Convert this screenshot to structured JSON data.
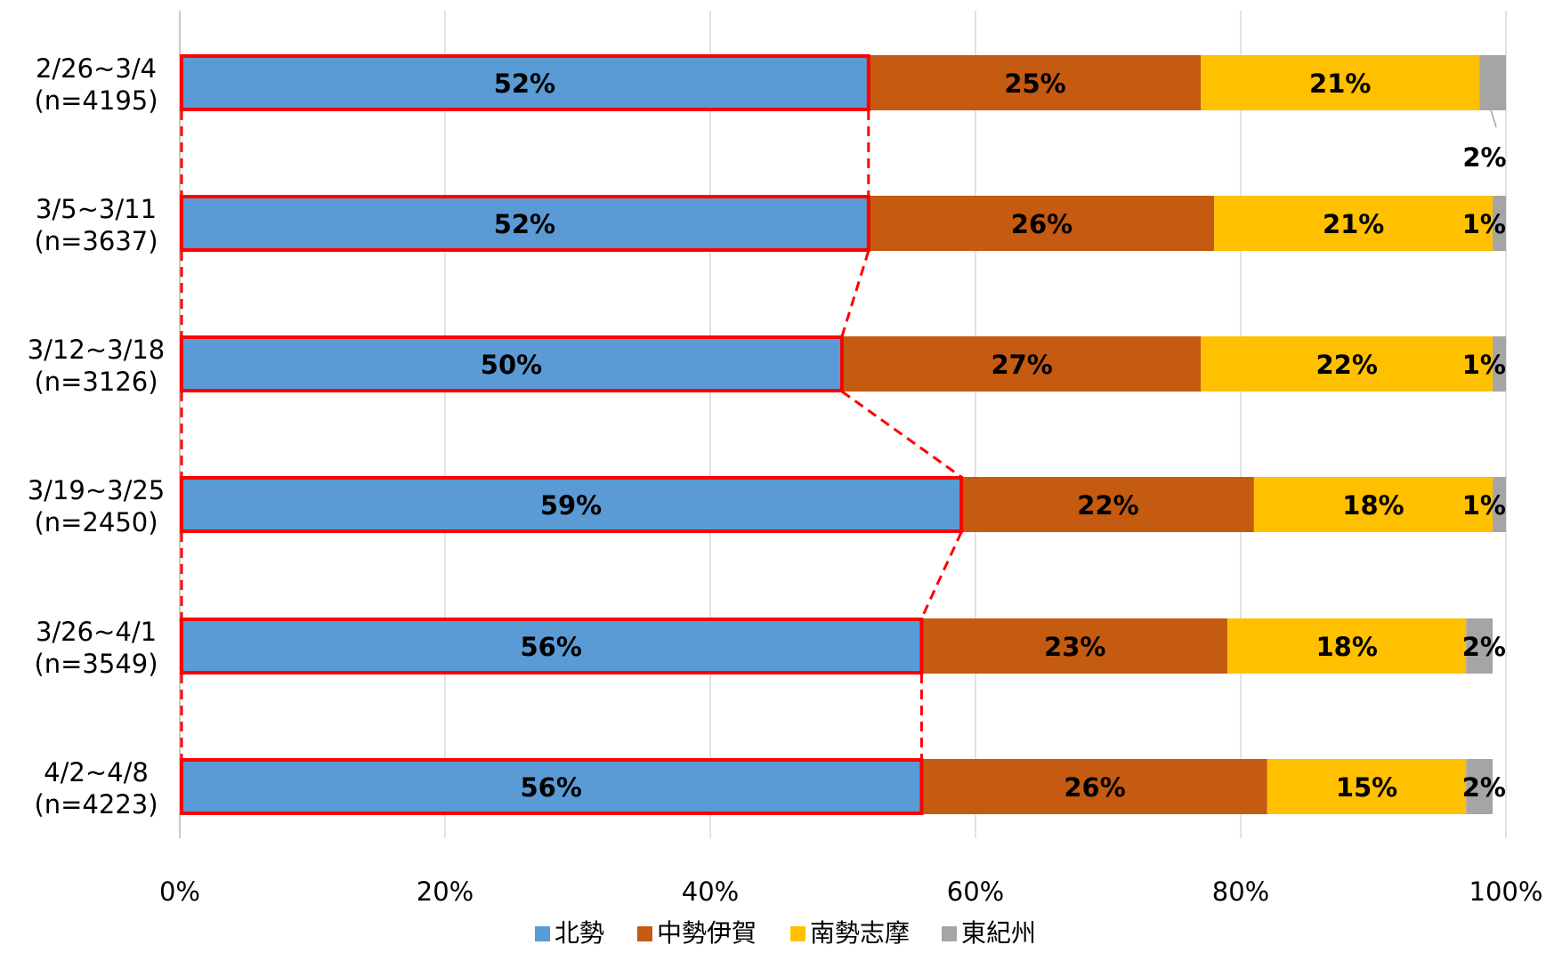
{
  "chart_data": {
    "type": "bar",
    "orientation": "horizontal",
    "stacked": "100%",
    "categories": [
      {
        "line1": "2/26~3/4",
        "line2": "(n=4195)"
      },
      {
        "line1": "3/5~3/11",
        "line2": "(n=3637)"
      },
      {
        "line1": "3/12~3/18",
        "line2": "(n=3126)"
      },
      {
        "line1": "3/19~3/25",
        "line2": "(n=2450)"
      },
      {
        "line1": "3/26~4/1",
        "line2": "(n=3549)"
      },
      {
        "line1": "4/2~4/8",
        "line2": "(n=4223)"
      }
    ],
    "series": [
      {
        "name": "北勢",
        "color": "#5B9BD5",
        "values": [
          52,
          52,
          50,
          59,
          56,
          56
        ],
        "labels": [
          "52%",
          "52%",
          "50%",
          "59%",
          "56%",
          "56%"
        ]
      },
      {
        "name": "中勢伊賀",
        "color": "#C55A11",
        "values": [
          25,
          26,
          27,
          22,
          23,
          26
        ],
        "labels": [
          "25%",
          "26%",
          "27%",
          "22%",
          "23%",
          "26%"
        ]
      },
      {
        "name": "南勢志摩",
        "color": "#FFC000",
        "values": [
          21,
          21,
          22,
          18,
          18,
          15
        ],
        "labels": [
          "21%",
          "21%",
          "22%",
          "18%",
          "18%",
          "15%"
        ]
      },
      {
        "name": "東紀州",
        "color": "#A5A5A5",
        "values": [
          2,
          1,
          1,
          1,
          2,
          2
        ],
        "labels": [
          "2%",
          "1%",
          "1%",
          "1%",
          "2%",
          "2%"
        ]
      }
    ],
    "xlim": [
      0,
      100
    ],
    "x_ticks": [
      "0%",
      "20%",
      "40%",
      "60%",
      "80%",
      "100%"
    ],
    "grid": "vertical",
    "legend_position": "bottom",
    "highlight": {
      "series": "北勢",
      "color": "#FF0000",
      "connector": "dashed"
    }
  }
}
